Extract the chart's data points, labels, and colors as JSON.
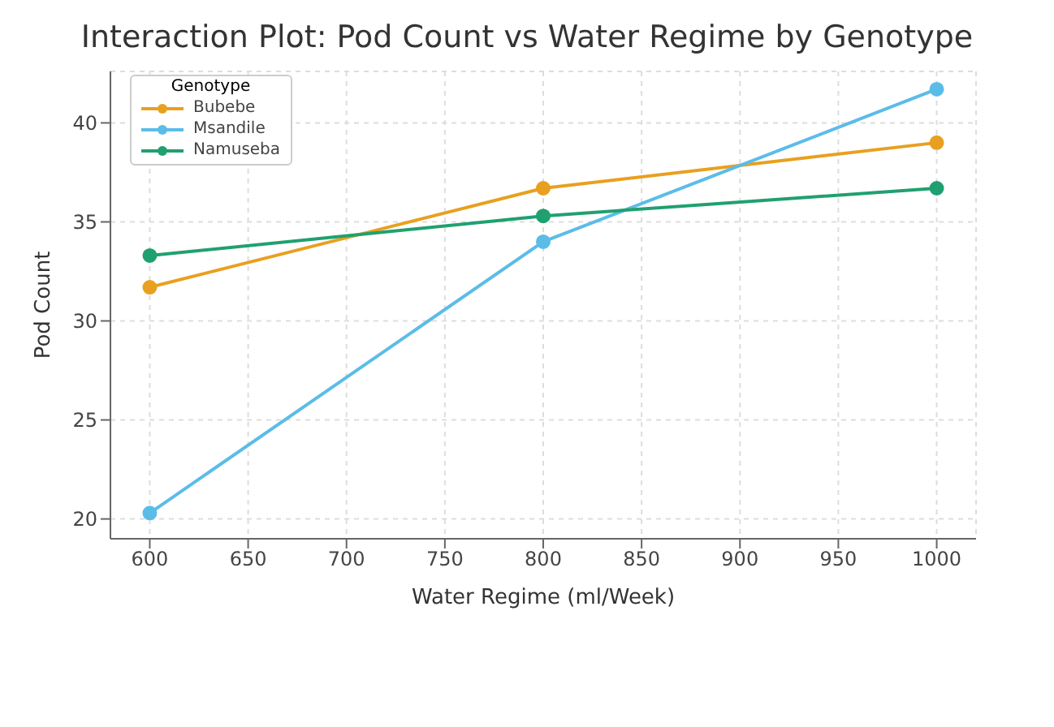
{
  "chart_data": {
    "type": "line",
    "title": "Interaction Plot: Pod Count vs Water Regime by Genotype",
    "xlabel": "Water Regime (ml/Week)",
    "ylabel": "Pod Count",
    "legend_title": "Genotype",
    "x": [
      600,
      800,
      1000
    ],
    "series": [
      {
        "name": "Bubebe",
        "color": "#e8a020",
        "values": [
          31.7,
          36.7,
          39
        ]
      },
      {
        "name": "Msandile",
        "color": "#5bbce8",
        "values": [
          20.3,
          34,
          41.7
        ]
      },
      {
        "name": "Namuseba",
        "color": "#20a070",
        "values": [
          33.3,
          35.3,
          36.7
        ]
      }
    ],
    "xlim": [
      580,
      1020
    ],
    "xticks": [
      600,
      650,
      700,
      750,
      800,
      850,
      900,
      950,
      1000
    ],
    "ylim": [
      19,
      42.6
    ],
    "yticks": [
      20,
      25,
      30,
      35,
      40
    ],
    "grid": true,
    "legend": "top left",
    "marker": "circle",
    "line_style": "solid"
  }
}
